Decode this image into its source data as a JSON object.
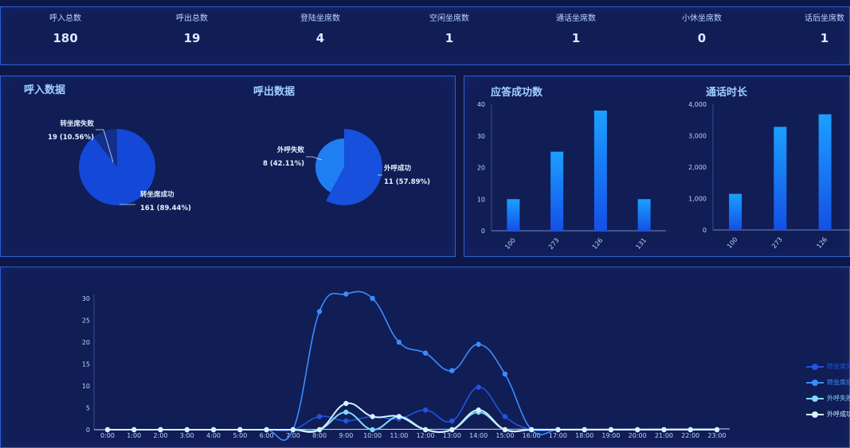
{
  "stats": [
    {
      "label": "呼入总数",
      "value": "180"
    },
    {
      "label": "呼出总数",
      "value": "19"
    },
    {
      "label": "登陆坐席数",
      "value": "4"
    },
    {
      "label": "空闲坐席数",
      "value": "1"
    },
    {
      "label": "通话坐席数",
      "value": "1"
    },
    {
      "label": "小休坐席数",
      "value": "0"
    },
    {
      "label": "话后坐席数",
      "value": "1"
    }
  ],
  "chart_data": [
    {
      "type": "pie",
      "title": "呼入数据",
      "slices": [
        {
          "name": "转坐席失败",
          "value": 19,
          "label": "19 (10.56%)",
          "color": "#142f8a"
        },
        {
          "name": "转坐席成功",
          "value": 161,
          "label": "161 (89.44%)",
          "color": "#1448d8"
        }
      ]
    },
    {
      "type": "pie",
      "title": "呼出数据",
      "slices": [
        {
          "name": "外呼失败",
          "value": 8,
          "label": "8 (42.11%)",
          "color": "#1f7ef2"
        },
        {
          "name": "外呼成功",
          "value": 11,
          "label": "11 (57.89%)",
          "color": "#1650dc"
        }
      ]
    },
    {
      "type": "bar",
      "title": "应答成功数",
      "categories": [
        "100",
        "273",
        "126",
        "131"
      ],
      "values": [
        10,
        25,
        38,
        10
      ],
      "ylim": [
        0,
        40
      ],
      "yticks": [
        "0",
        "10",
        "20",
        "30",
        "40"
      ]
    },
    {
      "type": "bar",
      "title": "通话时长",
      "categories": [
        "100",
        "273",
        "126"
      ],
      "values": [
        1150,
        3280,
        3680
      ],
      "ylim": [
        0,
        4000
      ],
      "yticks": [
        "0",
        "1,000",
        "2,000",
        "3,000",
        "4,000"
      ]
    },
    {
      "type": "line",
      "x": [
        "0:00",
        "1:00",
        "2:00",
        "3:00",
        "4:00",
        "5:00",
        "6:00",
        "7:00",
        "8:00",
        "9:00",
        "10:00",
        "11:00",
        "12:00",
        "13:00",
        "14:00",
        "15:00",
        "16:00",
        "17:00",
        "18:00",
        "19:00",
        "20:00",
        "21:00",
        "22:00",
        "23:00"
      ],
      "ylim": [
        0,
        30
      ],
      "yticks": [
        "0",
        "5",
        "10",
        "15",
        "20",
        "25",
        "30"
      ],
      "legend": "right",
      "series": [
        {
          "name": "转坐席失败数",
          "color": "#1f55e0",
          "values": [
            0,
            0,
            0,
            0,
            0,
            0,
            0,
            0,
            3,
            2,
            3,
            2.5,
            4.5,
            2,
            9.7,
            3,
            0,
            0,
            0,
            0,
            0,
            0,
            0,
            0
          ]
        },
        {
          "name": "转坐席成功数",
          "color": "#3a8cff",
          "values": [
            0,
            0,
            0,
            0,
            0,
            0,
            0,
            0,
            27,
            31,
            30,
            20,
            17.5,
            13.5,
            19.5,
            12.7,
            0,
            0,
            0,
            0,
            0,
            0,
            0,
            0
          ]
        },
        {
          "name": "外呼失败数",
          "color": "#7fd8ff",
          "values": [
            0,
            0,
            0,
            0,
            0,
            0,
            0,
            0,
            0,
            4,
            0,
            3,
            0,
            0,
            4,
            0,
            0,
            0,
            0,
            0,
            0,
            0,
            0,
            0
          ]
        },
        {
          "name": "外呼成功数",
          "color": "#d6f2ff",
          "values": [
            0,
            0,
            0,
            0,
            0,
            0,
            0,
            0,
            0,
            6,
            3,
            3,
            0,
            0,
            4.5,
            0,
            0,
            0,
            0,
            0,
            0,
            0,
            0,
            0
          ]
        }
      ]
    }
  ]
}
